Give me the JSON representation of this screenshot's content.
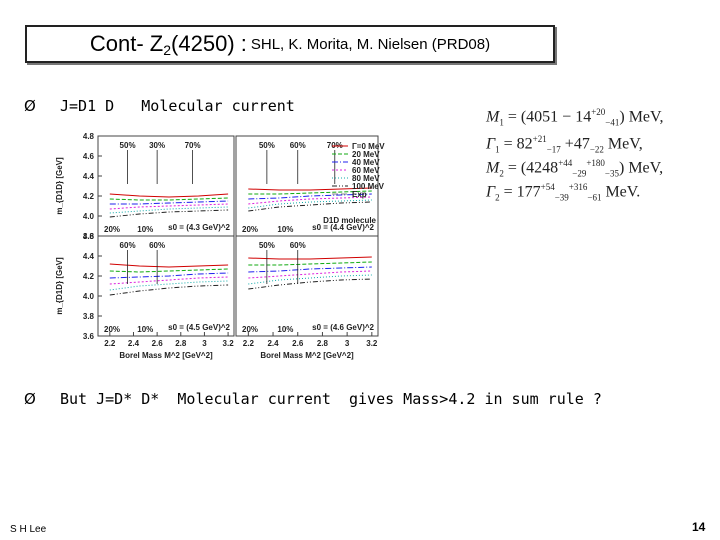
{
  "title": {
    "prefix": "Cont-  Z",
    "subscript": "2",
    "paren": "(4250) : ",
    "authors": "SHL, K. Morita, M. Nielsen (PRD08)"
  },
  "bullets": [
    {
      "marker": "Ø",
      "text": "J=D1 D   Molecular current"
    },
    {
      "marker": "Ø",
      "text": "But J=D* D*  Molecular current  gives Mass>4.2 in sum rule ?"
    }
  ],
  "formulas": {
    "m1_label": "M",
    "m1_sub": "1",
    "m1_eq": " = (4051 − 14",
    "m1_sup": "+20",
    "m1_inf": "−41",
    "m1_unit": ")  MeV,",
    "g1_label": "Γ",
    "g1_sub": "1",
    "g1_eq": " = 82",
    "g1_sup": "+21",
    "g1_inf": "−17",
    "g1_eq2": " +47",
    "g1_inf2": "−22",
    "g1_unit": "  MeV,",
    "m2_label": "M",
    "m2_sub": "2",
    "m2_eq": " = (4248",
    "m2_sup": "+44",
    "m2_inf": "−29",
    "m2_sup2": "+180",
    "m2_inf2": "−35",
    "m2_unit": ")  MeV,",
    "g2_label": "Γ",
    "g2_sub": "2",
    "g2_eq": " = 177",
    "g2_sup": "+54",
    "g2_inf": "−39",
    "g2_sup2": "+316",
    "g2_inf2": "−61",
    "g2_unit": "  MeV."
  },
  "chart_data": [
    {
      "type": "line",
      "panel": "top-left",
      "ylabel": "m_{D1D} [GeV]",
      "yticks": [
        3.8,
        4.0,
        4.2,
        4.4,
        4.6,
        4.8
      ],
      "ylim": [
        3.8,
        4.8
      ],
      "s0": "s0 = (4.3 GeV)^2",
      "pct": [
        "50%",
        "30%",
        "70%"
      ],
      "pct_bottom": [
        "20%",
        "10%"
      ],
      "series": [
        {
          "name": "Γ=0 MeV",
          "values": [
            4.22,
            4.2,
            4.19,
            4.2,
            4.22
          ]
        },
        {
          "name": "20 MeV",
          "values": [
            4.17,
            4.16,
            4.16,
            4.17,
            4.18
          ]
        },
        {
          "name": "40 MeV",
          "values": [
            4.12,
            4.12,
            4.13,
            4.14,
            4.15
          ]
        },
        {
          "name": "60 MeV",
          "values": [
            4.07,
            4.09,
            4.1,
            4.11,
            4.12
          ]
        },
        {
          "name": "80 MeV",
          "values": [
            4.03,
            4.05,
            4.07,
            4.08,
            4.09
          ]
        },
        {
          "name": "100 MeV",
          "values": [
            3.99,
            4.02,
            4.04,
            4.05,
            4.06
          ]
        }
      ]
    },
    {
      "type": "line",
      "panel": "top-right",
      "s0": "s0 = (4.4 GeV)^2",
      "pct": [
        "50%",
        "60%",
        "70%"
      ],
      "pct_bottom": [
        "20%",
        "10%"
      ],
      "legend": [
        "Γ=0 MeV",
        "20 MeV",
        "40 MeV",
        "60 MeV",
        "80 MeV",
        "100 MeV",
        "Exp"
      ],
      "molecule": "D1D molecule",
      "series": [
        {
          "name": "Γ=0 MeV",
          "values": [
            4.27,
            4.26,
            4.26,
            4.27,
            4.28
          ]
        },
        {
          "name": "20 MeV",
          "values": [
            4.22,
            4.22,
            4.23,
            4.24,
            4.25
          ]
        },
        {
          "name": "40 MeV",
          "values": [
            4.17,
            4.18,
            4.2,
            4.21,
            4.22
          ]
        },
        {
          "name": "60 MeV",
          "values": [
            4.12,
            4.15,
            4.17,
            4.18,
            4.19
          ]
        },
        {
          "name": "80 MeV",
          "values": [
            4.08,
            4.12,
            4.14,
            4.15,
            4.16
          ]
        },
        {
          "name": "100 MeV",
          "values": [
            4.05,
            4.09,
            4.11,
            4.13,
            4.14
          ]
        }
      ]
    },
    {
      "type": "line",
      "panel": "bottom-left",
      "ylabel": "m_{D1D} [GeV]",
      "yticks": [
        3.6,
        3.8,
        4.0,
        4.2,
        4.4,
        4.6
      ],
      "ylim": [
        3.6,
        4.6
      ],
      "xticks": [
        "2.2",
        "2.4",
        "2.6",
        "2.8",
        "3",
        "3.2"
      ],
      "xlabel": "Borel Mass M^2 [GeV^2]",
      "s0": "s0 = (4.5 GeV)^2",
      "pct": [
        "60%",
        "60%"
      ],
      "pct_bottom": [
        "20%",
        "10%"
      ],
      "series": [
        {
          "name": "Γ=0 MeV",
          "values": [
            4.32,
            4.3,
            4.29,
            4.3,
            4.31
          ]
        },
        {
          "name": "20 MeV",
          "values": [
            4.25,
            4.24,
            4.25,
            4.26,
            4.27
          ]
        },
        {
          "name": "40 MeV",
          "values": [
            4.18,
            4.19,
            4.2,
            4.22,
            4.23
          ]
        },
        {
          "name": "60 MeV",
          "values": [
            4.12,
            4.14,
            4.16,
            4.18,
            4.19
          ]
        },
        {
          "name": "80 MeV",
          "values": [
            4.06,
            4.1,
            4.12,
            4.14,
            4.15
          ]
        },
        {
          "name": "100 MeV",
          "values": [
            4.01,
            4.05,
            4.08,
            4.1,
            4.11
          ]
        }
      ]
    },
    {
      "type": "line",
      "panel": "bottom-right",
      "xticks": [
        "2.2",
        "2.4",
        "2.6",
        "2.8",
        "3",
        "3.2"
      ],
      "xlabel": "Borel Mass M^2 [GeV^2]",
      "s0": "s0 = (4.6 GeV)^2",
      "pct": [
        "50%",
        "60%"
      ],
      "pct_bottom": [
        "20%",
        "10%"
      ],
      "series": [
        {
          "name": "Γ=0 MeV",
          "values": [
            4.38,
            4.37,
            4.37,
            4.38,
            4.39
          ]
        },
        {
          "name": "20 MeV",
          "values": [
            4.31,
            4.31,
            4.32,
            4.33,
            4.34
          ]
        },
        {
          "name": "40 MeV",
          "values": [
            4.24,
            4.25,
            4.27,
            4.28,
            4.29
          ]
        },
        {
          "name": "60 MeV",
          "values": [
            4.18,
            4.2,
            4.22,
            4.24,
            4.25
          ]
        },
        {
          "name": "80 MeV",
          "values": [
            4.12,
            4.16,
            4.18,
            4.2,
            4.21
          ]
        },
        {
          "name": "100 MeV",
          "values": [
            4.07,
            4.11,
            4.14,
            4.16,
            4.17
          ]
        }
      ]
    }
  ],
  "series_colors": [
    "#d00000",
    "#11aa11",
    "#2020ee",
    "#dd22dd",
    "#11aaaa",
    "#222222"
  ],
  "exp_color": "#888888",
  "footer": {
    "author": "S H Lee",
    "page": "14"
  }
}
